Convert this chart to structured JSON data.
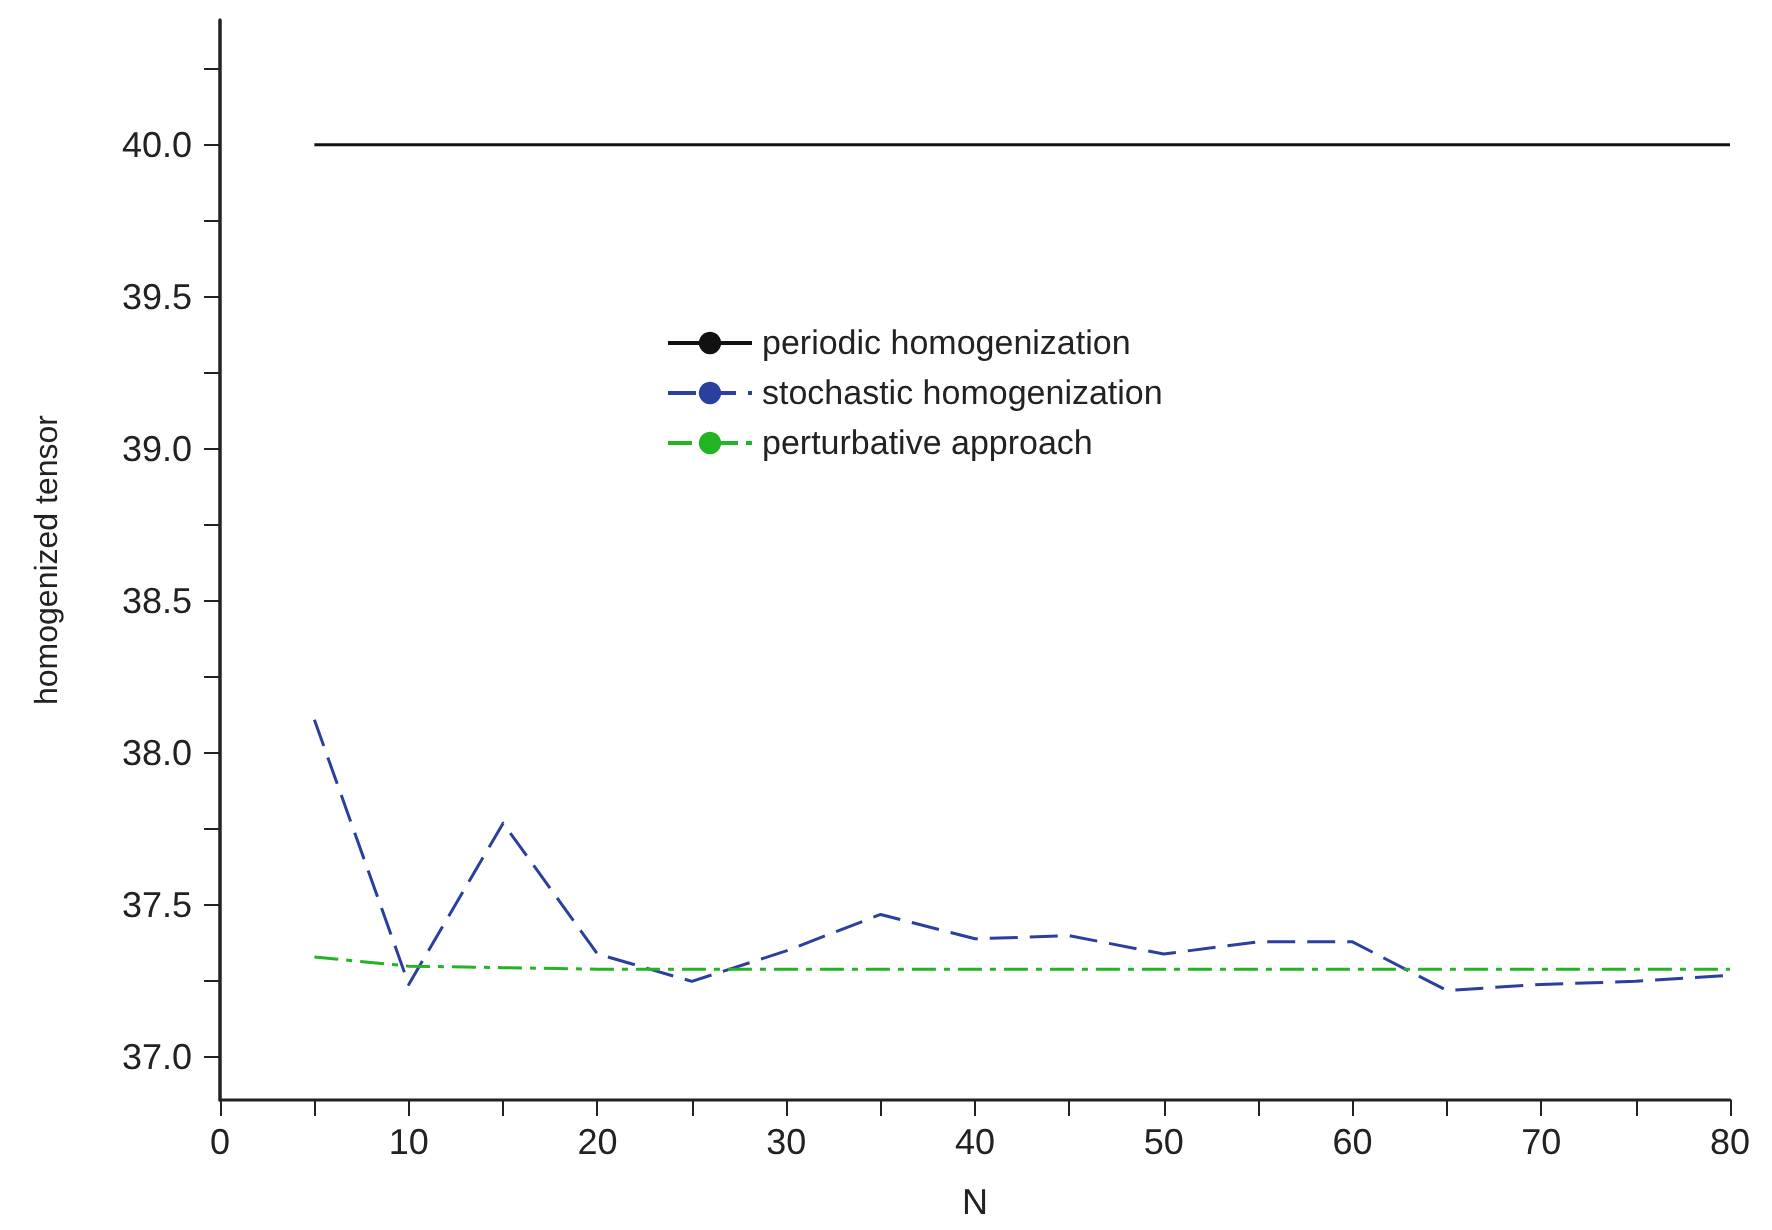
{
  "chart_data": {
    "type": "line",
    "xlabel": "N",
    "ylabel": "homogenized tensor",
    "x": [
      5,
      10,
      15,
      20,
      25,
      30,
      35,
      40,
      45,
      50,
      55,
      60,
      65,
      70,
      75,
      80
    ],
    "series": [
      {
        "name": "periodic homogenization",
        "color": "#111111",
        "line_style": "solid",
        "values": [
          40,
          40,
          40,
          40,
          40,
          40,
          40,
          40,
          40,
          40,
          40,
          40,
          40,
          40,
          40,
          40
        ]
      },
      {
        "name": "stochastic homogenization",
        "color": "#2b3f9e",
        "line_style": "dashed",
        "values": [
          38.11,
          37.24,
          37.77,
          37.34,
          37.25,
          37.35,
          37.47,
          37.39,
          37.4,
          37.34,
          37.38,
          37.38,
          37.22,
          37.24,
          37.25,
          37.27
        ]
      },
      {
        "name": "perturbative approach",
        "color": "#22b422",
        "line_style": "dashdot",
        "values": [
          37.33,
          37.3,
          37.295,
          37.29,
          37.29,
          37.29,
          37.29,
          37.29,
          37.29,
          37.29,
          37.29,
          37.29,
          37.29,
          37.29,
          37.29,
          37.29
        ]
      }
    ],
    "xlim": [
      0,
      80
    ],
    "ylim": [
      36.86,
      40.41
    ],
    "xticks": [
      0,
      {
        "value": 5,
        "label": null
      },
      10,
      {
        "value": 15,
        "label": null
      },
      20,
      {
        "value": 25,
        "label": null
      },
      30,
      {
        "value": 35,
        "label": null
      },
      40,
      {
        "value": 45,
        "label": null
      },
      50,
      {
        "value": 55,
        "label": null
      },
      60,
      {
        "value": 65,
        "label": null
      },
      70,
      {
        "value": 75,
        "label": null
      },
      80
    ],
    "yticks": [
      {
        "value": 37,
        "label": "37.0"
      },
      {
        "value": 37.25,
        "label": null
      },
      {
        "value": 37.5,
        "label": "37.5"
      },
      {
        "value": 37.75,
        "label": null
      },
      {
        "value": 38,
        "label": "38.0"
      },
      {
        "value": 38.25,
        "label": null
      },
      {
        "value": 38.5,
        "label": "38.5"
      },
      {
        "value": 38.75,
        "label": null
      },
      {
        "value": 39,
        "label": "39.0"
      },
      {
        "value": 39.25,
        "label": null
      },
      {
        "value": 39.5,
        "label": "39.5"
      },
      {
        "value": 39.75,
        "label": null
      },
      {
        "value": 40,
        "label": "40.0"
      },
      {
        "value": 40.25,
        "label": null
      }
    ],
    "legend": "top"
  }
}
